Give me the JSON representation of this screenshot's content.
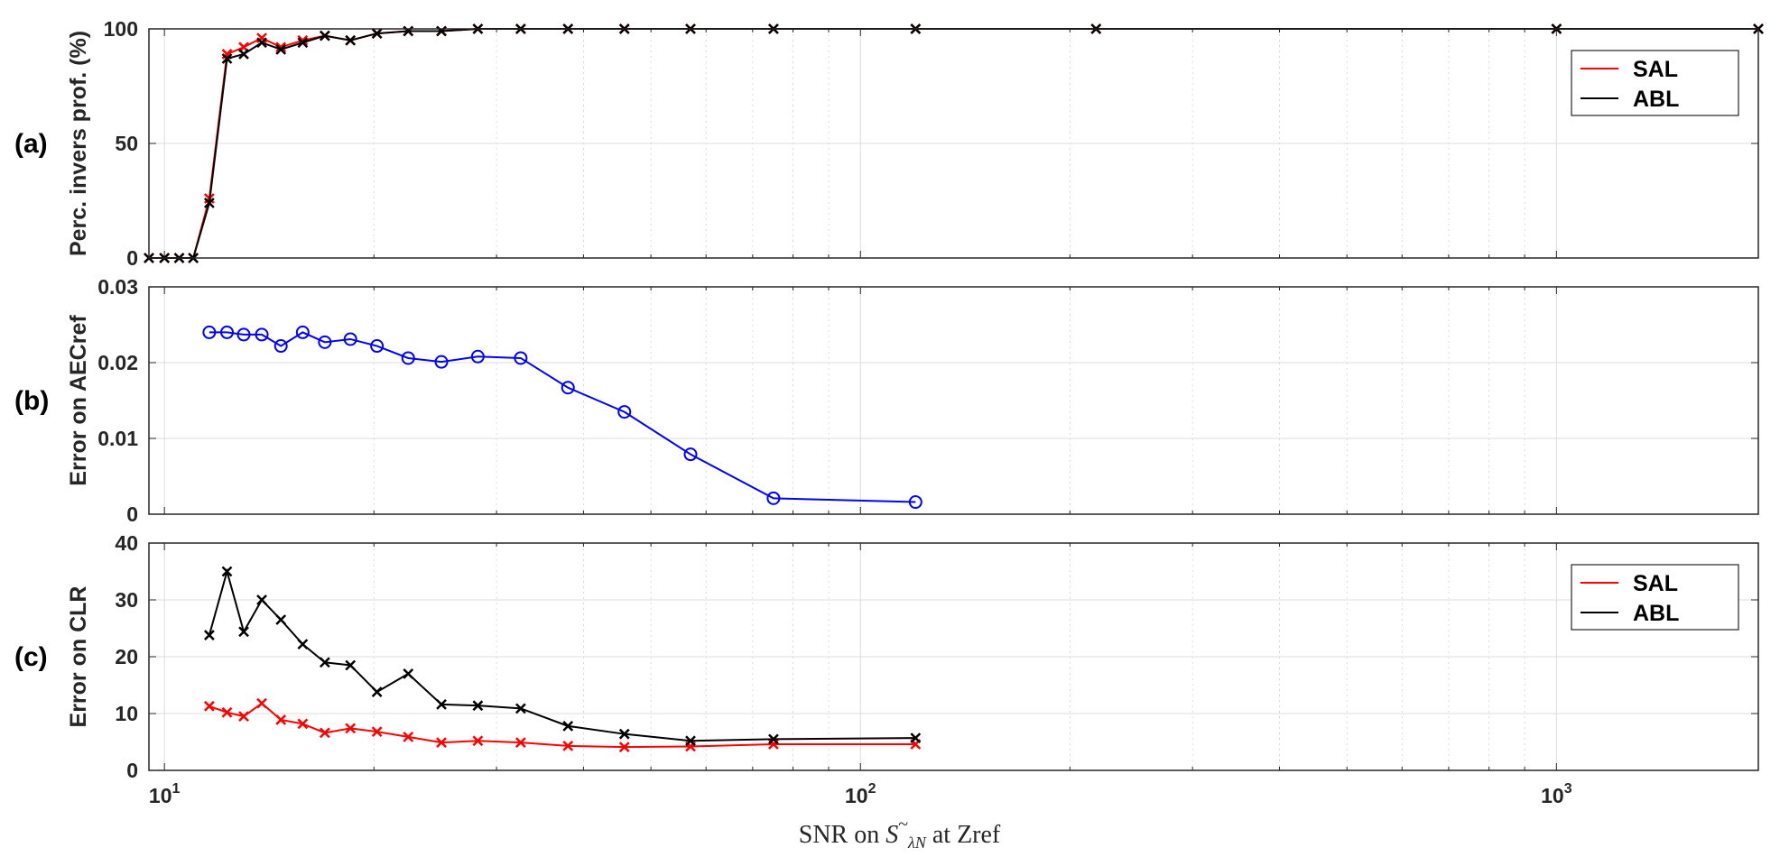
{
  "figure": {
    "xlabel_parts": {
      "prefix": "SNR on ",
      "symbol": "S",
      "tilde": "~",
      "subscript": "λN",
      "suffix": " at Zref"
    },
    "x_axis": {
      "scale": "log",
      "range": [
        9.5,
        1950
      ],
      "ticks": [
        10,
        100,
        1000
      ],
      "tick_labels": [
        {
          "base": "10",
          "exp": "1"
        },
        {
          "base": "10",
          "exp": "2"
        },
        {
          "base": "10",
          "exp": "3"
        }
      ]
    }
  },
  "chart_data": [
    {
      "type": "line",
      "panel_label": "(a)",
      "ylabel": "Perc. invers prof. (%)",
      "ylim": [
        0,
        100
      ],
      "yticks": [
        0,
        50,
        100
      ],
      "ytick_labels": [
        "0",
        "50",
        "100"
      ],
      "grid": true,
      "legend": {
        "placement": "top-right",
        "entries": [
          "SAL",
          "ABL"
        ]
      },
      "series": [
        {
          "name": "SAL",
          "color": "#ff0000",
          "marker": "x",
          "x": [
            9.5,
            10.0,
            10.5,
            11.0,
            11.6,
            12.3,
            13.0,
            13.8,
            14.7,
            15.8,
            17.0,
            18.5,
            20.2,
            22.4,
            25.0,
            28.2,
            32.5,
            38.0,
            45.8,
            57.0,
            75.0,
            120.0,
            218.0,
            1000.0,
            1950.0
          ],
          "y": [
            0,
            0,
            0,
            0,
            26,
            89,
            92,
            96,
            92,
            95,
            97,
            95,
            98,
            99,
            99,
            100,
            100,
            100,
            100,
            100,
            100,
            100,
            100,
            100,
            100
          ]
        },
        {
          "name": "ABL",
          "color": "#000000",
          "marker": "x",
          "x": [
            9.5,
            10.0,
            10.5,
            11.0,
            11.6,
            12.3,
            13.0,
            13.8,
            14.7,
            15.8,
            17.0,
            18.5,
            20.2,
            22.4,
            25.0,
            28.2,
            32.5,
            38.0,
            45.8,
            57.0,
            75.0,
            120.0,
            218.0,
            1000.0,
            1950.0
          ],
          "y": [
            0,
            0,
            0,
            0,
            24,
            87,
            89,
            94,
            91,
            94,
            97,
            95,
            98,
            99,
            99,
            100,
            100,
            100,
            100,
            100,
            100,
            100,
            100,
            100,
            100
          ]
        }
      ]
    },
    {
      "type": "line",
      "panel_label": "(b)",
      "ylabel": "Error on AECref",
      "ylim": [
        0,
        0.03
      ],
      "yticks": [
        0,
        0.01,
        0.02,
        0.03
      ],
      "ytick_labels": [
        "0",
        "0.01",
        "0.02",
        "0.03"
      ],
      "grid": true,
      "series": [
        {
          "color": "#0000ff",
          "marker": "o",
          "x": [
            11.6,
            12.3,
            13.0,
            13.8,
            14.7,
            15.8,
            17.0,
            18.5,
            20.2,
            22.4,
            25.0,
            28.2,
            32.5,
            38.0,
            45.8,
            57.0,
            75.0,
            120.0,
            218.0,
            1000.0,
            1950.0
          ],
          "y": [
            0.024,
            0.024,
            0.0237,
            0.0237,
            0.0222,
            0.024,
            0.0227,
            0.0231,
            0.0222,
            0.0206,
            0.0201,
            0.0208,
            0.0206,
            0.0167,
            0.0135,
            0.0079,
            0.0021,
            0.0016,
            null,
            null,
            null
          ]
        }
      ]
    },
    {
      "type": "line",
      "panel_label": "(c)",
      "ylabel": "Error on CLR",
      "ylim": [
        0,
        40
      ],
      "yticks": [
        0,
        10,
        20,
        30,
        40
      ],
      "ytick_labels": [
        "0",
        "10",
        "20",
        "30",
        "40"
      ],
      "grid": true,
      "legend": {
        "placement": "top-right",
        "entries": [
          "SAL",
          "ABL"
        ]
      },
      "series": [
        {
          "name": "SAL",
          "color": "#ff0000",
          "marker": "x",
          "x": [
            11.6,
            12.3,
            13.0,
            13.8,
            14.7,
            15.8,
            17.0,
            18.5,
            20.2,
            22.4,
            25.0,
            28.2,
            32.5,
            38.0,
            45.8,
            57.0,
            75.0,
            120.0,
            218.0,
            1000.0,
            1950.0
          ],
          "y": [
            11.3,
            10.2,
            9.5,
            11.8,
            8.9,
            8.2,
            6.6,
            7.4,
            6.8,
            5.9,
            4.9,
            5.2,
            4.9,
            4.3,
            4.1,
            4.2,
            4.6,
            4.6,
            null,
            null,
            null
          ]
        },
        {
          "name": "ABL",
          "color": "#000000",
          "marker": "x",
          "x": [
            11.6,
            12.3,
            13.0,
            13.8,
            14.7,
            15.8,
            17.0,
            18.5,
            20.2,
            22.4,
            25.0,
            28.2,
            32.5,
            38.0,
            45.8,
            57.0,
            75.0,
            120.0,
            218.0,
            1000.0,
            1950.0
          ],
          "y": [
            23.8,
            35.0,
            24.4,
            30.0,
            26.5,
            22.2,
            19.0,
            18.5,
            13.8,
            17.0,
            11.6,
            11.4,
            10.9,
            7.8,
            6.4,
            5.2,
            5.5,
            5.7,
            null,
            null,
            null
          ]
        }
      ]
    }
  ]
}
